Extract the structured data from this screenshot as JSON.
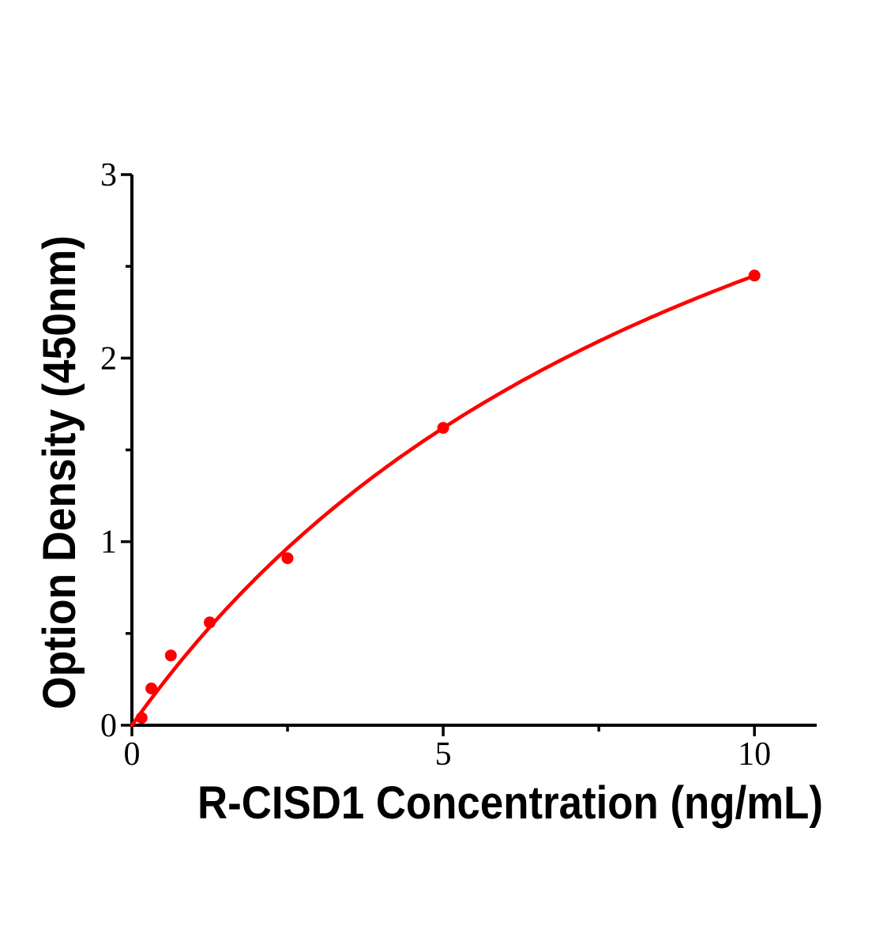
{
  "chart_data": {
    "type": "scatter",
    "title": "",
    "xlabel": "R-CISD1 Concentration (ng/mL)",
    "ylabel": "Option Density (450nm)",
    "xlim": [
      0,
      11
    ],
    "ylim": [
      0,
      3
    ],
    "x_major_ticks": [
      0,
      5,
      10
    ],
    "x_minor_ticks": [
      2.5,
      7.5
    ],
    "y_major_ticks": [
      0,
      1,
      2,
      3
    ],
    "y_minor_ticks": [
      0.5,
      1.5,
      2.5
    ],
    "grid": false,
    "legend": null,
    "points": [
      {
        "x": 0.156,
        "y": 0.04
      },
      {
        "x": 0.312,
        "y": 0.2
      },
      {
        "x": 0.625,
        "y": 0.38
      },
      {
        "x": 1.25,
        "y": 0.56
      },
      {
        "x": 2.5,
        "y": 0.91
      },
      {
        "x": 5,
        "y": 1.62
      },
      {
        "x": 10,
        "y": 2.45
      }
    ],
    "fit_curve": {
      "model": "y = a*x / (b + x)",
      "a": 5.02,
      "b": 10.5,
      "x_start": 0,
      "x_end": 10
    },
    "colors": {
      "series": "#ff0000",
      "axis": "#000000",
      "background": "#ffffff"
    }
  }
}
